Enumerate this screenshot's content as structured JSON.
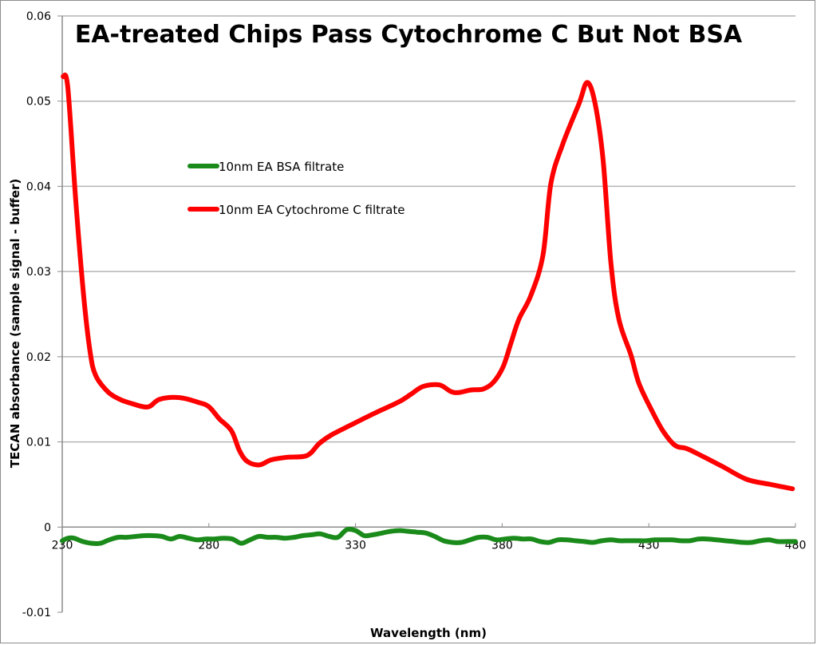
{
  "chart_data": {
    "type": "line",
    "title": "EA-treated Chips Pass Cytochrome C But Not BSA",
    "xlabel": "Wavelength (nm)",
    "ylabel": "TECAN absorbance (sample signal - buffer)",
    "xlim": [
      230,
      480
    ],
    "ylim": [
      -0.01,
      0.06
    ],
    "xticks": [
      230,
      280,
      330,
      380,
      430,
      480
    ],
    "xtick_labels": [
      "230",
      "280",
      "330",
      "380",
      "430",
      "480"
    ],
    "yticks": [
      -0.01,
      0,
      0.01,
      0.02,
      0.03,
      0.04,
      0.05,
      0.06
    ],
    "ytick_labels": [
      "-0.01",
      "0",
      "0.01",
      "0.02",
      "0.03",
      "0.04",
      "0.05",
      "0.06"
    ],
    "grid": "horizontal",
    "legend_position": "upper-left-inside",
    "series": [
      {
        "name": "10nm EA BSA filtrate",
        "color": "#1a8a1a",
        "x": [
          230,
          232,
          234,
          237,
          240,
          243,
          246,
          249,
          252,
          255,
          258,
          261,
          264,
          267,
          270,
          273,
          276,
          279,
          282,
          285,
          288,
          291,
          294,
          297,
          300,
          303,
          306,
          309,
          312,
          315,
          318,
          321,
          324,
          327,
          330,
          333,
          336,
          339,
          342,
          345,
          348,
          351,
          354,
          357,
          360,
          363,
          366,
          369,
          372,
          375,
          378,
          381,
          384,
          387,
          390,
          393,
          396,
          399,
          402,
          405,
          408,
          411,
          414,
          417,
          420,
          423,
          426,
          429,
          432,
          435,
          438,
          441,
          444,
          447,
          450,
          453,
          456,
          459,
          462,
          465,
          468,
          471,
          474,
          477,
          480
        ],
        "y": [
          -0.0016,
          -0.0013,
          -0.0013,
          -0.0017,
          -0.0019,
          -0.0019,
          -0.0015,
          -0.0012,
          -0.0012,
          -0.0011,
          -0.001,
          -0.001,
          -0.0011,
          -0.0014,
          -0.0011,
          -0.0013,
          -0.0015,
          -0.0014,
          -0.0014,
          -0.0013,
          -0.0014,
          -0.0019,
          -0.0015,
          -0.0011,
          -0.0012,
          -0.0012,
          -0.0013,
          -0.0012,
          -0.001,
          -0.0009,
          -0.0008,
          -0.0011,
          -0.0012,
          -0.0003,
          -0.0004,
          -0.001,
          -0.0009,
          -0.0007,
          -0.0005,
          -0.0004,
          -0.0005,
          -0.0006,
          -0.0007,
          -0.0011,
          -0.0016,
          -0.0018,
          -0.0018,
          -0.0015,
          -0.0012,
          -0.0012,
          -0.0015,
          -0.0014,
          -0.0013,
          -0.0014,
          -0.0014,
          -0.0017,
          -0.0018,
          -0.0015,
          -0.0015,
          -0.0016,
          -0.0017,
          -0.0018,
          -0.0016,
          -0.0015,
          -0.0016,
          -0.0016,
          -0.0016,
          -0.0016,
          -0.0015,
          -0.0015,
          -0.0015,
          -0.0016,
          -0.0016,
          -0.0014,
          -0.0014,
          -0.0015,
          -0.0016,
          -0.0017,
          -0.0018,
          -0.0018,
          -0.0016,
          -0.0015,
          -0.0017,
          -0.0017,
          -0.0017
        ]
      },
      {
        "name": "10nm EA Cytochrome C filtrate",
        "color": "#ff0000",
        "x": [
          230.3,
          231.9,
          234.6,
          237.3,
          239.5,
          241.4,
          245.5,
          249.6,
          253.7,
          259.2,
          263.2,
          270.0,
          276.8,
          280.1,
          283.6,
          287.7,
          290.4,
          293.1,
          297.2,
          301.3,
          306.7,
          313.5,
          317.6,
          321.7,
          328.5,
          336.7,
          344.8,
          348.9,
          353.0,
          358.5,
          362.6,
          365.3,
          369.4,
          373.5,
          377.0,
          380.3,
          383.0,
          385.7,
          389.8,
          393.9,
          396.6,
          400.7,
          406.2,
          409.0,
          411.7,
          414.4,
          417.1,
          419.8,
          423.9,
          426.6,
          430.7,
          434.8,
          438.9,
          443.0,
          448.4,
          455.2,
          463.4,
          471.6,
          479.0
        ],
        "y": [
          0.0529,
          0.0516,
          0.0384,
          0.0272,
          0.0206,
          0.0178,
          0.0159,
          0.015,
          0.0145,
          0.0141,
          0.015,
          0.0152,
          0.0146,
          0.0141,
          0.0127,
          0.0113,
          0.009,
          0.0077,
          0.0073,
          0.0079,
          0.0082,
          0.0084,
          0.0098,
          0.0108,
          0.012,
          0.0134,
          0.0147,
          0.0156,
          0.0165,
          0.0167,
          0.0159,
          0.0158,
          0.0161,
          0.0162,
          0.017,
          0.0188,
          0.0216,
          0.0244,
          0.0272,
          0.0319,
          0.0403,
          0.045,
          0.0497,
          0.0522,
          0.0497,
          0.0431,
          0.0309,
          0.0244,
          0.0202,
          0.0169,
          0.0139,
          0.0113,
          0.0096,
          0.0092,
          0.0083,
          0.0071,
          0.0056,
          0.005,
          0.0045
        ]
      }
    ]
  }
}
